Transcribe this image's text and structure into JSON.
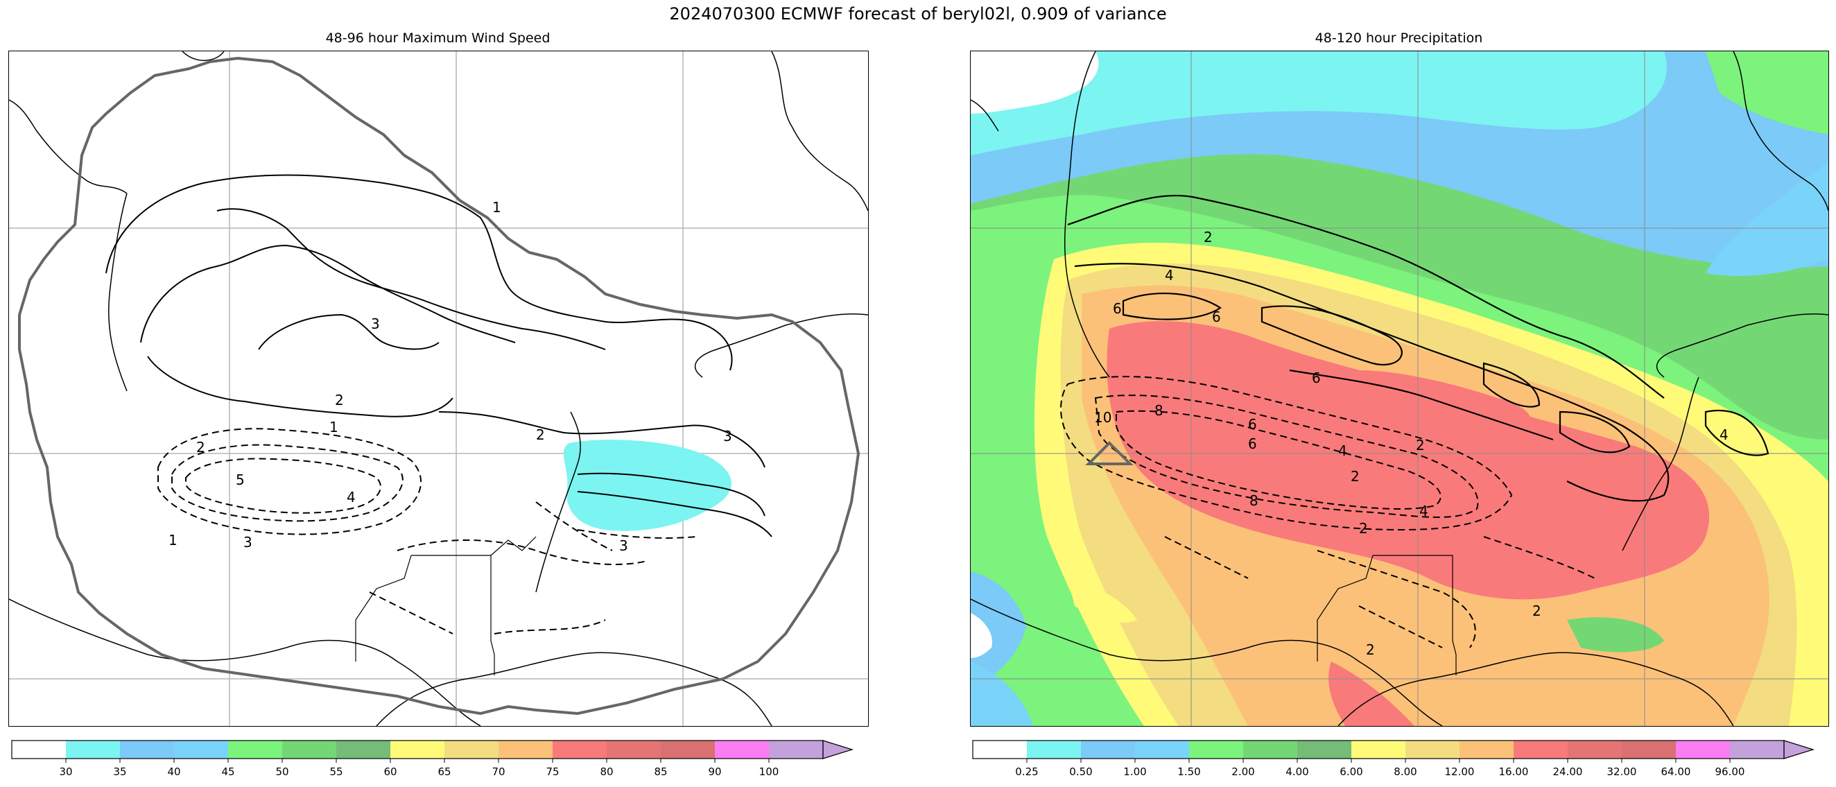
{
  "figure": {
    "title": "2024070300 ECMWF forecast of beryl02l, 0.909 of variance"
  },
  "left_panel": {
    "title": "48-96 hour Maximum Wind Speed",
    "colorbar": {
      "colors": [
        "#ffffff",
        "#7cf4f1",
        "#7bcaf7",
        "#7ad3f8",
        "#7cf37c",
        "#73d874",
        "#74bc77",
        "#fffb78",
        "#f3dd80",
        "#fcc179",
        "#f97a7a",
        "#e57575",
        "#d97071",
        "#fb7df4",
        "#c3a2dc"
      ],
      "ticks": [
        "30",
        "35",
        "40",
        "45",
        "50",
        "55",
        "60",
        "65",
        "70",
        "75",
        "80",
        "85",
        "90",
        "100"
      ]
    },
    "contour_labels": [
      "1",
      "2",
      "3",
      "1",
      "2",
      "2",
      "3",
      "5",
      "4",
      "3",
      "1",
      "3"
    ]
  },
  "right_panel": {
    "title": "48-120 hour Precipitation",
    "colorbar": {
      "colors": [
        "#ffffff",
        "#7cf4f1",
        "#7bcaf7",
        "#7ad3f8",
        "#7cf37c",
        "#73d874",
        "#74bc77",
        "#fffb78",
        "#f3dd80",
        "#fcc179",
        "#f97a7a",
        "#e57575",
        "#d97071",
        "#fb7df4",
        "#c3a2dc"
      ],
      "ticks": [
        "0.25",
        "0.50",
        "1.00",
        "1.50",
        "2.00",
        "4.00",
        "6.00",
        "8.00",
        "12.00",
        "16.00",
        "24.00",
        "32.00",
        "64.00",
        "96.00"
      ]
    },
    "contour_labels": [
      "2",
      "4",
      "6",
      "6",
      "6",
      "6",
      "10",
      "8",
      "6",
      "4",
      "4",
      "2",
      "2",
      "8",
      "4",
      "2",
      "2",
      "2"
    ]
  }
}
